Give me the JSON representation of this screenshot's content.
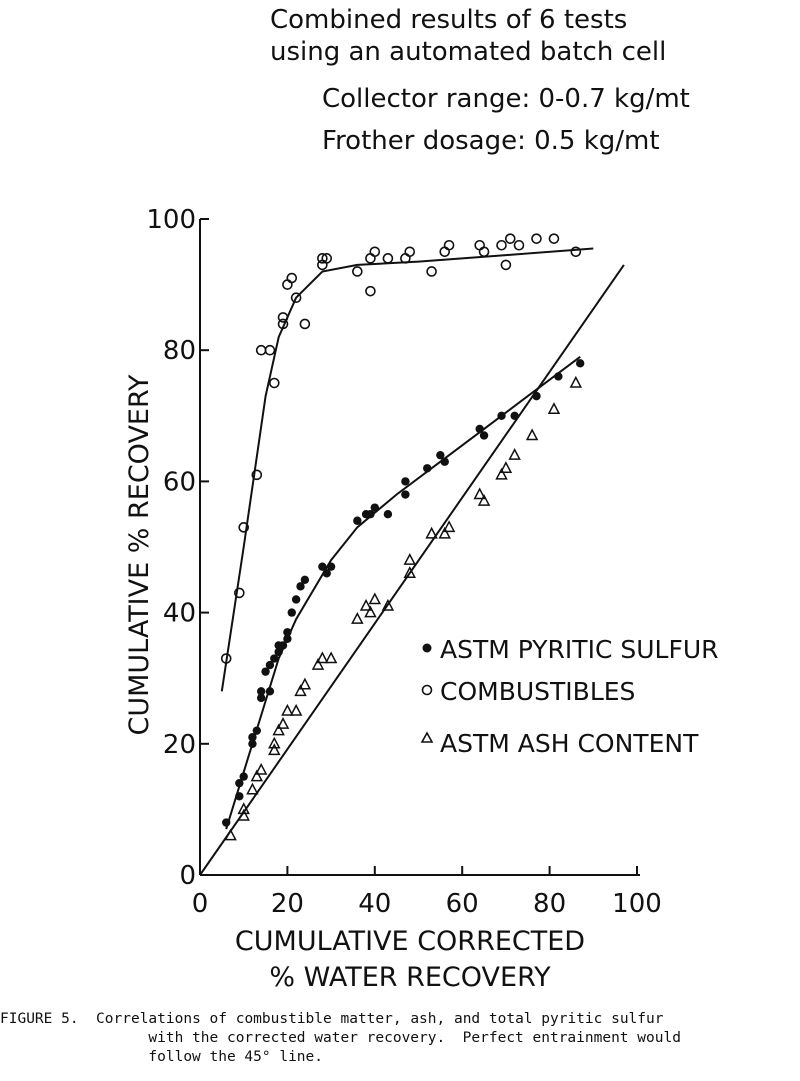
{
  "chart_data": {
    "type": "scatter",
    "title_lines": [
      "Combined results of 6 tests",
      "using an automated batch cell",
      "Collector range: 0-0.7 kg/mt",
      "Frother dosage: 0.5 kg/mt"
    ],
    "xlabel_lines": [
      "CUMULATIVE CORRECTED",
      "% WATER RECOVERY"
    ],
    "ylabel": "CUMULATIVE % RECOVERY",
    "xlim": [
      0,
      100
    ],
    "ylim": [
      0,
      100
    ],
    "xticks": [
      "0",
      "20",
      "40",
      "60",
      "80",
      "100"
    ],
    "yticks": [
      "0",
      "20",
      "40",
      "60",
      "80",
      "100"
    ],
    "grid": false,
    "legend_position": "center-right",
    "series": [
      {
        "name": "ASTM PYRITIC SULFUR",
        "marker": "filled-circle",
        "points": [
          [
            6,
            8
          ],
          [
            9,
            12
          ],
          [
            9,
            14
          ],
          [
            10,
            15
          ],
          [
            12,
            20
          ],
          [
            12,
            21
          ],
          [
            13,
            22
          ],
          [
            14,
            27
          ],
          [
            14,
            28
          ],
          [
            15,
            31
          ],
          [
            16,
            32
          ],
          [
            16,
            28
          ],
          [
            17,
            33
          ],
          [
            18,
            34
          ],
          [
            18,
            35
          ],
          [
            19,
            35
          ],
          [
            20,
            37
          ],
          [
            20,
            36
          ],
          [
            21,
            40
          ],
          [
            22,
            42
          ],
          [
            23,
            44
          ],
          [
            24,
            45
          ],
          [
            28,
            47
          ],
          [
            29,
            46
          ],
          [
            30,
            47
          ],
          [
            36,
            54
          ],
          [
            38,
            55
          ],
          [
            39,
            55
          ],
          [
            40,
            56
          ],
          [
            43,
            55
          ],
          [
            47,
            60
          ],
          [
            47,
            58
          ],
          [
            52,
            62
          ],
          [
            55,
            64
          ],
          [
            56,
            63
          ],
          [
            64,
            68
          ],
          [
            65,
            67
          ],
          [
            69,
            70
          ],
          [
            72,
            70
          ],
          [
            77,
            73
          ],
          [
            82,
            76
          ],
          [
            87,
            78
          ]
        ]
      },
      {
        "name": "COMBUSTIBLES",
        "marker": "open-circle",
        "points": [
          [
            6,
            33
          ],
          [
            9,
            43
          ],
          [
            10,
            53
          ],
          [
            13,
            61
          ],
          [
            14,
            80
          ],
          [
            16,
            80
          ],
          [
            17,
            75
          ],
          [
            19,
            84
          ],
          [
            19,
            85
          ],
          [
            20,
            90
          ],
          [
            21,
            91
          ],
          [
            22,
            88
          ],
          [
            24,
            84
          ],
          [
            28,
            93
          ],
          [
            28,
            94
          ],
          [
            29,
            94
          ],
          [
            36,
            92
          ],
          [
            39,
            89
          ],
          [
            39,
            94
          ],
          [
            40,
            95
          ],
          [
            43,
            94
          ],
          [
            47,
            94
          ],
          [
            48,
            95
          ],
          [
            53,
            92
          ],
          [
            56,
            95
          ],
          [
            57,
            96
          ],
          [
            64,
            96
          ],
          [
            65,
            95
          ],
          [
            69,
            96
          ],
          [
            70,
            93
          ],
          [
            71,
            97
          ],
          [
            73,
            96
          ],
          [
            77,
            97
          ],
          [
            81,
            97
          ],
          [
            86,
            95
          ]
        ]
      },
      {
        "name": "ASTM ASH CONTENT",
        "marker": "open-triangle",
        "points": [
          [
            7,
            6
          ],
          [
            10,
            9
          ],
          [
            10,
            10
          ],
          [
            12,
            13
          ],
          [
            13,
            15
          ],
          [
            14,
            16
          ],
          [
            17,
            19
          ],
          [
            17,
            20
          ],
          [
            18,
            22
          ],
          [
            19,
            23
          ],
          [
            20,
            25
          ],
          [
            22,
            25
          ],
          [
            23,
            28
          ],
          [
            24,
            29
          ],
          [
            27,
            32
          ],
          [
            28,
            33
          ],
          [
            30,
            33
          ],
          [
            36,
            39
          ],
          [
            38,
            41
          ],
          [
            39,
            40
          ],
          [
            40,
            42
          ],
          [
            43,
            41
          ],
          [
            48,
            46
          ],
          [
            48,
            48
          ],
          [
            53,
            52
          ],
          [
            56,
            52
          ],
          [
            57,
            53
          ],
          [
            64,
            58
          ],
          [
            65,
            57
          ],
          [
            69,
            61
          ],
          [
            70,
            62
          ],
          [
            72,
            64
          ],
          [
            76,
            67
          ],
          [
            81,
            71
          ],
          [
            86,
            75
          ]
        ]
      }
    ],
    "lines": [
      {
        "name": "45-degree line",
        "points": [
          [
            0,
            0
          ],
          [
            97,
            93
          ]
        ]
      },
      {
        "name": "sulfur fit",
        "points": [
          [
            6,
            7
          ],
          [
            12,
            20
          ],
          [
            18,
            33
          ],
          [
            22,
            39
          ],
          [
            30,
            48
          ],
          [
            36,
            53
          ],
          [
            45,
            58
          ],
          [
            55,
            63
          ],
          [
            65,
            68
          ],
          [
            75,
            73
          ],
          [
            87,
            79
          ]
        ]
      },
      {
        "name": "combustibles fit",
        "points": [
          [
            5,
            28
          ],
          [
            10,
            50
          ],
          [
            15,
            73
          ],
          [
            18,
            82
          ],
          [
            22,
            88
          ],
          [
            28,
            92
          ],
          [
            36,
            93
          ],
          [
            50,
            93.5
          ],
          [
            70,
            94.5
          ],
          [
            90,
            95.5
          ]
        ]
      }
    ]
  },
  "caption": {
    "label": "FIGURE 5.",
    "lines": [
      "Correlations of combustible matter, ash, and total pyritic sulfur",
      "with the corrected water recovery.  Perfect entrainment would",
      "follow the 45° line."
    ]
  }
}
